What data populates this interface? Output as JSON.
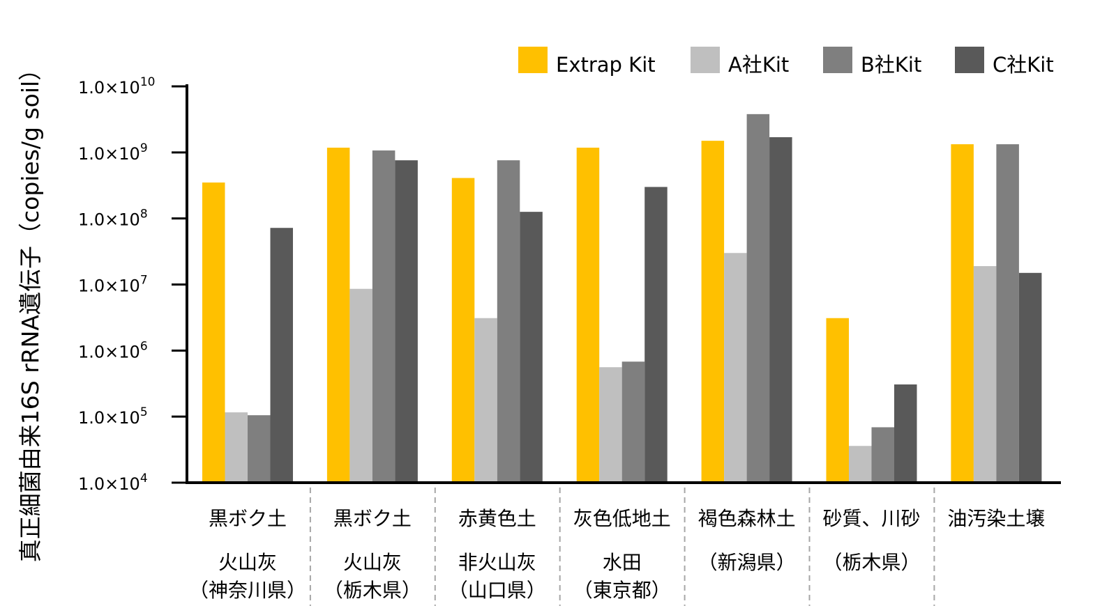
{
  "chart_data": {
    "type": "bar",
    "ylabel": "真正細菌由来16S rRNA遺伝子（copies/g soil）",
    "yscale": "log",
    "ylim": [
      10000,
      10000000000
    ],
    "yticks": [
      {
        "base": "1.0×10",
        "exp": "4",
        "value": 10000
      },
      {
        "base": "1.0×10",
        "exp": "5",
        "value": 100000
      },
      {
        "base": "1.0×10",
        "exp": "6",
        "value": 1000000
      },
      {
        "base": "1.0×10",
        "exp": "7",
        "value": 10000000
      },
      {
        "base": "1.0×10",
        "exp": "8",
        "value": 100000000
      },
      {
        "base": "1.0×10",
        "exp": "9",
        "value": 1000000000
      },
      {
        "base": "1.0×10",
        "exp": "10",
        "value": 10000000000
      }
    ],
    "legend_position": "top-right",
    "grid": false,
    "categories": [
      {
        "line1": "黒ボク土",
        "line2": "火山灰",
        "line3": "（神奈川県）"
      },
      {
        "line1": "黒ボク土",
        "line2": "火山灰",
        "line3": "（栃木県）"
      },
      {
        "line1": "赤黄色土",
        "line2": "非火山灰",
        "line3": "（山口県）"
      },
      {
        "line1": "灰色低地土",
        "line2": "水田",
        "line3": "（東京都）"
      },
      {
        "line1": "褐色森林土",
        "line2": "（新潟県）",
        "line3": ""
      },
      {
        "line1": "砂質、川砂",
        "line2": "（栃木県）",
        "line3": ""
      },
      {
        "line1": "油汚染土壌",
        "line2": "",
        "line3": ""
      }
    ],
    "series": [
      {
        "name": "Extrap Kit",
        "color": "#FFC000",
        "values": [
          350000000,
          1180000000,
          410000000,
          1180000000,
          1500000000,
          3100000,
          1330000000
        ]
      },
      {
        "name": "A社Kit",
        "color": "#BFBFBF",
        "values": [
          116000,
          8600000,
          3100000,
          560000,
          30000000,
          36000,
          19000000
        ]
      },
      {
        "name": "B社Kit",
        "color": "#7F7F7F",
        "values": [
          105000,
          1070000000,
          760000000,
          680000,
          3800000000,
          69000,
          1330000000
        ]
      },
      {
        "name": "C社Kit",
        "color": "#595959",
        "values": [
          72000000,
          760000000,
          126000000,
          300000000,
          1700000000,
          307000,
          15000000
        ]
      }
    ]
  }
}
